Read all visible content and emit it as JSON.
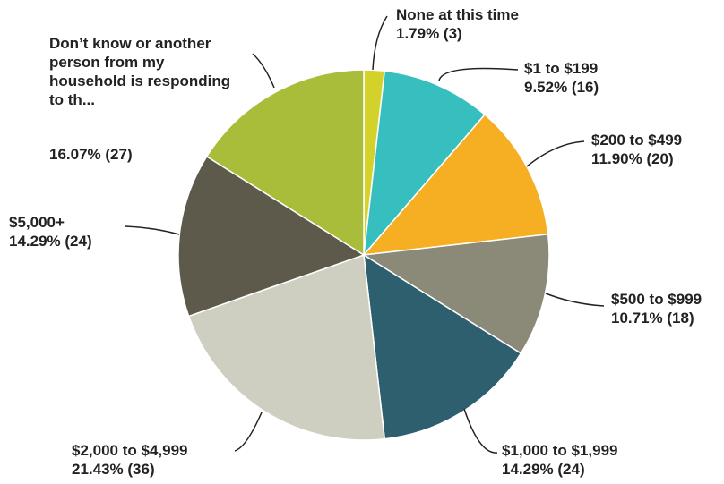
{
  "chart_data": {
    "type": "pie",
    "categories": [
      "None at this time",
      "$1 to $199",
      "$200 to $499",
      "$500 to $999",
      "$1,000 to $1,999",
      "$2,000 to $4,999",
      "$5,000+",
      "Don’t know or another person from my household is responding to th..."
    ],
    "values": [
      1.79,
      9.52,
      11.9,
      10.71,
      14.29,
      21.43,
      14.29,
      16.07
    ],
    "value_labels": [
      "1.79% (3)",
      "9.52% (16)",
      "11.90% (20)",
      "10.71% (18)",
      "14.29% (24)",
      "21.43% (36)",
      "14.29% (24)",
      "16.07% (27)"
    ],
    "colors": [
      "#d3d22b",
      "#37bfc0",
      "#f6ae23",
      "#8b8a78",
      "#2e5f6e",
      "#cfcfc1",
      "#5e5a4b",
      "#a9bd3b"
    ]
  }
}
